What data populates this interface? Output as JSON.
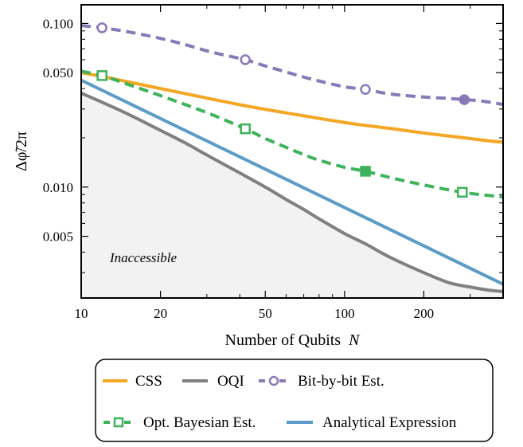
{
  "chart_data": {
    "type": "line",
    "xlabel": "Number of Qubits",
    "xlabel_var": "N",
    "ylabel": "Δφ̃/2π",
    "xscale": "log",
    "yscale": "log",
    "xlim": [
      10,
      400
    ],
    "ylim": [
      0.0021,
      0.13
    ],
    "xticks": [
      10,
      20,
      50,
      100,
      200
    ],
    "xtick_labels": [
      "10",
      "20",
      "50",
      "100",
      "200"
    ],
    "yticks": [
      0.005,
      0.01,
      0.05,
      0.1
    ],
    "ytick_labels": [
      "0.005",
      "0.010",
      "0.050",
      "0.100"
    ],
    "shaded_region": {
      "label": "Inaccessible",
      "bounded_by": "OQI",
      "color": "#f2f2f2"
    },
    "legend_position": "bottom (outside)",
    "series": [
      {
        "name": "CSS",
        "color": "#F5A623",
        "style": "solid",
        "marker": "none",
        "x": [
          10,
          12,
          15,
          20,
          30,
          42,
          60,
          80,
          100,
          120,
          150,
          200,
          250,
          300,
          350,
          400
        ],
        "y": [
          0.05,
          0.0474,
          0.044,
          0.04,
          0.035,
          0.0314,
          0.0284,
          0.0263,
          0.0248,
          0.0238,
          0.0228,
          0.0214,
          0.0205,
          0.0198,
          0.0192,
          0.0188
        ]
      },
      {
        "name": "OQI",
        "color": "#808080",
        "style": "solid",
        "marker": "none",
        "x": [
          10,
          12,
          15,
          20,
          25,
          30,
          40,
          50,
          60,
          70,
          80,
          100,
          120,
          150,
          200,
          250,
          300,
          350,
          400
        ],
        "y": [
          0.0375,
          0.033,
          0.028,
          0.0222,
          0.0185,
          0.0157,
          0.0122,
          0.01,
          0.0084,
          0.0073,
          0.0064,
          0.0052,
          0.0045,
          0.0037,
          0.003,
          0.0026,
          0.00245,
          0.00235,
          0.0023
        ]
      },
      {
        "name": "Bit-by-bit Est.",
        "color": "#8879B8",
        "style": "dashed",
        "marker": "circle",
        "x": [
          10,
          12,
          15,
          20,
          25,
          30,
          35,
          42,
          50,
          60,
          70,
          80,
          100,
          120,
          150,
          200,
          250,
          285,
          330,
          400
        ],
        "y": [
          0.097,
          0.094,
          0.089,
          0.081,
          0.074,
          0.068,
          0.064,
          0.06,
          0.055,
          0.0505,
          0.047,
          0.0445,
          0.041,
          0.0395,
          0.037,
          0.0355,
          0.0348,
          0.0342,
          0.0336,
          0.032
        ]
      },
      {
        "name": "Opt. Bayesian Est.",
        "color": "#3DB35A",
        "style": "dashed",
        "marker": "square",
        "x": [
          10,
          12,
          15,
          20,
          30,
          42,
          50,
          60,
          70,
          80,
          100,
          120,
          150,
          200,
          280,
          350,
          400
        ],
        "y": [
          0.051,
          0.048,
          0.0425,
          0.0362,
          0.0285,
          0.0227,
          0.0198,
          0.0175,
          0.0158,
          0.0146,
          0.0132,
          0.0125,
          0.0114,
          0.0103,
          0.0093,
          0.0089,
          0.0087
        ]
      },
      {
        "name": "Analytical Expression",
        "color": "#5B9BC8",
        "style": "solid",
        "marker": "none",
        "x": [
          10,
          400
        ],
        "y": [
          0.045,
          0.00255
        ]
      }
    ],
    "markers": {
      "Bit-by-bit Est.": [
        {
          "x": 12,
          "y": 0.094,
          "filled": false
        },
        {
          "x": 42,
          "y": 0.06,
          "filled": false
        },
        {
          "x": 120,
          "y": 0.0395,
          "filled": false
        },
        {
          "x": 285,
          "y": 0.0342,
          "filled": true
        }
      ],
      "Opt. Bayesian Est.": [
        {
          "x": 12,
          "y": 0.048,
          "filled": false
        },
        {
          "x": 42,
          "y": 0.0227,
          "filled": false
        },
        {
          "x": 120,
          "y": 0.0125,
          "filled": true
        },
        {
          "x": 280,
          "y": 0.0093,
          "filled": false
        }
      ]
    }
  }
}
